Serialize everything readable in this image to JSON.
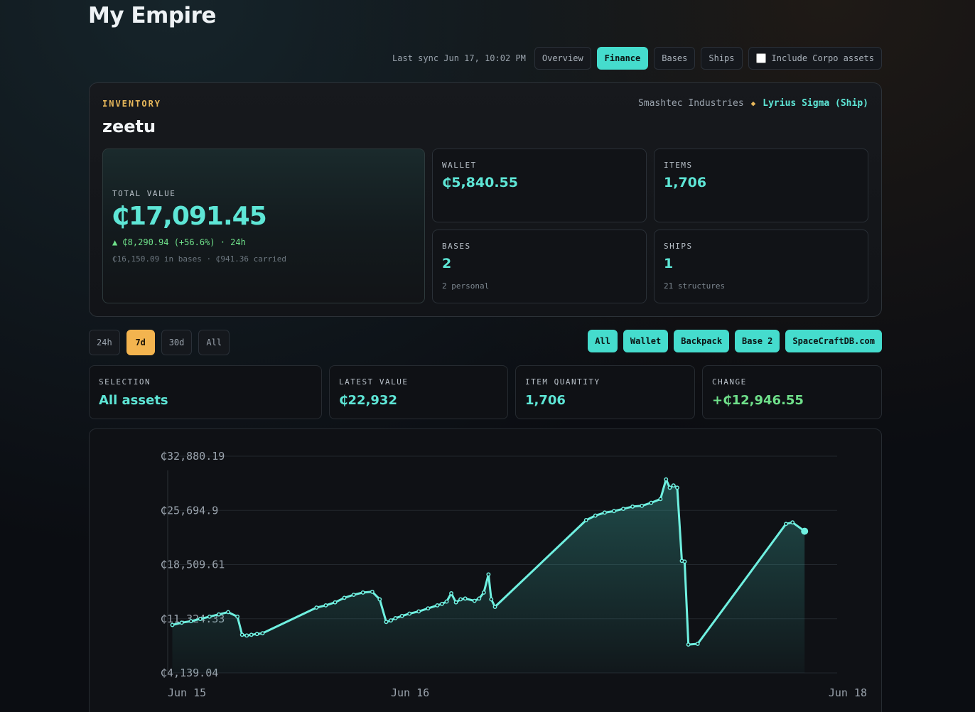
{
  "title": "My Empire",
  "header": {
    "last_sync": "Last sync Jun 17, 10:02 PM",
    "tabs": [
      "Overview",
      "Finance",
      "Bases",
      "Ships"
    ],
    "active_tab": "Finance",
    "include_corpo_label": "Include Corpo assets",
    "include_corpo_checked": false
  },
  "inventory": {
    "label": "INVENTORY",
    "name": "zeetu",
    "org": "Smashtec Industries",
    "ship": "Lyrius Sigma (Ship)",
    "total": {
      "label": "TOTAL VALUE",
      "value": "₵17,091.45",
      "change": "▲ ₵8,290.94 (+56.6%) · 24h",
      "breakdown": "₵16,150.09 in bases · ₵941.36 carried"
    },
    "wallet": {
      "label": "WALLET",
      "value": "₵5,840.55"
    },
    "items": {
      "label": "ITEMS",
      "value": "1,706"
    },
    "bases": {
      "label": "BASES",
      "value": "2",
      "sub": "2 personal"
    },
    "ships": {
      "label": "SHIPS",
      "value": "1",
      "sub": "21 structures"
    }
  },
  "range": {
    "options": [
      "24h",
      "7d",
      "30d",
      "All"
    ],
    "active": "7d"
  },
  "filters": [
    "All",
    "Wallet",
    "Backpack",
    "Base 2",
    "SpaceCraftDB.com"
  ],
  "stats": {
    "selection": {
      "label": "SELECTION",
      "value": "All assets"
    },
    "latest": {
      "label": "LATEST VALUE",
      "value": "₵22,932"
    },
    "quantity": {
      "label": "ITEM QUANTITY",
      "value": "1,706"
    },
    "change": {
      "label": "CHANGE",
      "value": "+₵12,946.55"
    }
  },
  "colors": {
    "accent": "#45dccd",
    "line": "#6ff0e0",
    "warning": "#f3b44f",
    "positive": "#6fe08a"
  },
  "chart_data": {
    "type": "area",
    "y_ticks": [
      "₵32,880.19",
      "₵25,694.9",
      "₵18,509.61",
      "₵11,324.33",
      "₵4,139.04"
    ],
    "x_ticks": [
      "Jun 15",
      "Jun 16",
      "Jun 18"
    ],
    "ylim": [
      4139.04,
      32880.19
    ],
    "x_unit": "hours since Jun 15 00:00",
    "xlim": [
      0,
      72
    ],
    "grid": true,
    "series": [
      {
        "x": [
          0.5,
          1.5,
          2.5,
          3.5,
          4.5,
          5.5,
          6.5,
          7.5,
          8.0,
          8.5,
          9.0,
          9.6,
          10.2,
          16.0,
          17.0,
          18.0,
          19.0,
          20.0,
          21.0,
          22.0,
          22.8,
          23.5,
          24.0,
          24.5,
          25.2,
          26.0,
          27.0,
          28.0,
          29.0,
          29.5,
          30.0,
          30.5,
          31.0,
          31.5,
          32.0,
          33.0,
          33.5,
          34.0,
          34.5,
          34.8,
          35.2,
          45.0,
          46.0,
          47.0,
          48.0,
          49.0,
          50.0,
          51.0,
          52.0,
          53.0,
          53.6,
          54.0,
          54.4,
          54.8,
          55.3,
          55.6,
          56.0,
          57.0,
          66.5,
          67.2,
          68.5
        ],
        "y": [
          10500,
          10800,
          11000,
          11300,
          11600,
          11900,
          12200,
          11600,
          9200,
          9100,
          9200,
          9300,
          9400,
          12800,
          13100,
          13500,
          14100,
          14500,
          14800,
          14900,
          13900,
          10900,
          11100,
          11400,
          11700,
          12000,
          12300,
          12700,
          13100,
          13300,
          13600,
          14700,
          13500,
          13900,
          14000,
          13700,
          14000,
          14800,
          17200,
          13900,
          12900,
          24400,
          25000,
          25400,
          25600,
          25900,
          26200,
          26300,
          26700,
          27200,
          29800,
          28700,
          29000,
          28700,
          19000,
          18900,
          7900,
          8000,
          23900,
          24100,
          22932
        ]
      }
    ]
  }
}
